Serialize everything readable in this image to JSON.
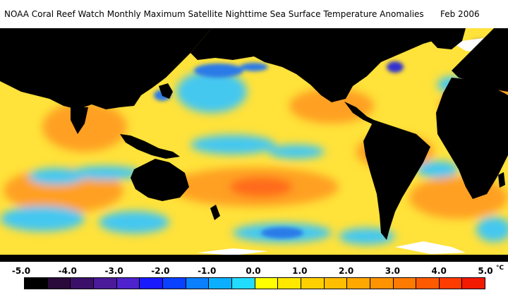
{
  "title": {
    "text": "NOAA Coral Reef Watch Monthly Maximum Satellite Nighttime Sea Surface Temperature Anomalies",
    "date": "Feb 2006"
  },
  "legend": {
    "ticks": [
      "-5.0",
      "-4.0",
      "-3.0",
      "-2.0",
      "-1.0",
      "0.0",
      "1.0",
      "2.0",
      "3.0",
      "4.0",
      "5.0"
    ],
    "unit": "°C",
    "colors": [
      "#000000",
      "#2a0a3a",
      "#3a1068",
      "#4a1a9a",
      "#4e22cc",
      "#1a1aff",
      "#0a40ff",
      "#0a80ff",
      "#0ab0ff",
      "#22dcff",
      "#ffff00",
      "#ffe800",
      "#ffd000",
      "#ffbe00",
      "#ffa800",
      "#ff9400",
      "#ff7a00",
      "#ff5a00",
      "#ff3c00",
      "#f21a00"
    ]
  },
  "map_colors": {
    "land": "#000000",
    "ice": "#ffffff",
    "ocean_base": "#ffe23a",
    "warm": "#ffa020",
    "hot": "#ff6a1a",
    "cool": "#44c8f0",
    "cold": "#2a7ae8",
    "very_cold": "#3030d0"
  }
}
